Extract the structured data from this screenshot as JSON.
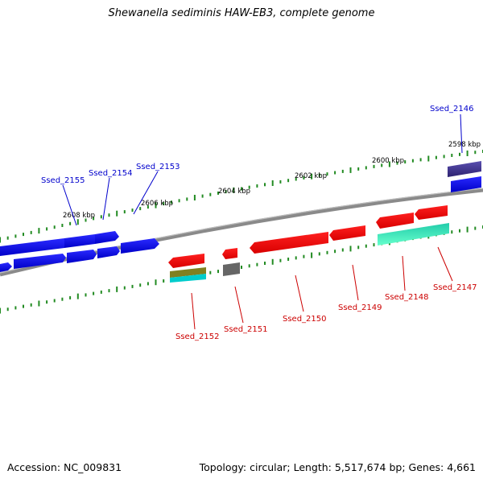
{
  "title": "Shewanella sediminis HAW-EB3, complete genome",
  "footer": {
    "accession": "Accession: NC_009831",
    "summary": "Topology: circular; Length: 5,517,674 bp; Genes: 4,661"
  },
  "ticks": [
    "2598 kbp",
    "2600 kbp",
    "2602 kbp",
    "2604 kbp",
    "2606 kbp",
    "2608 kbp"
  ],
  "genes": [
    {
      "name": "Ssed_2146",
      "color": "#0000cc"
    },
    {
      "name": "Ssed_2153",
      "color": "#0000cc"
    },
    {
      "name": "Ssed_2154",
      "color": "#0000cc"
    },
    {
      "name": "Ssed_2155",
      "color": "#0000cc"
    },
    {
      "name": "Ssed_2147",
      "color": "#cc0000"
    },
    {
      "name": "Ssed_2148",
      "color": "#cc0000"
    },
    {
      "name": "Ssed_2149",
      "color": "#cc0000"
    },
    {
      "name": "Ssed_2150",
      "color": "#cc0000"
    },
    {
      "name": "Ssed_2151",
      "color": "#cc0000"
    },
    {
      "name": "Ssed_2152",
      "color": "#cc0000"
    }
  ],
  "colors": {
    "forward_cds": "#0000ee",
    "reverse_cds": "#ee0000",
    "backbone": "#888888",
    "tick": "#228B22",
    "teal_feature": "#33ddaa",
    "olive_feature": "#808020",
    "cyan_feature": "#00cccc",
    "gray_feature": "#666666",
    "purple_feature": "#3a2f88"
  }
}
